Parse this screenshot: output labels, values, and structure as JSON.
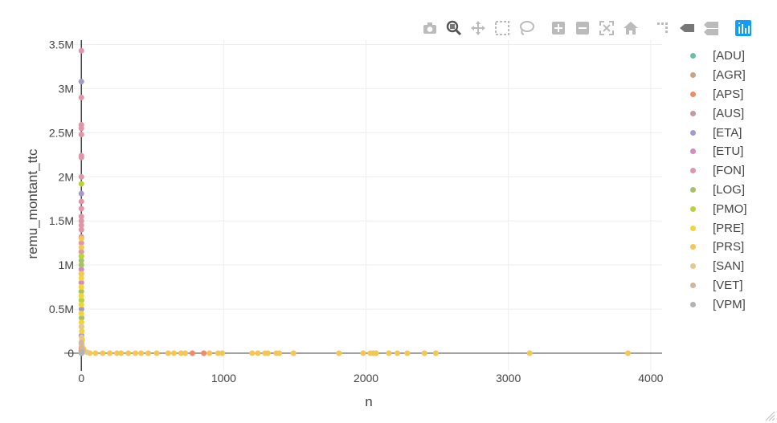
{
  "modebar": {
    "buttons": [
      {
        "name": "camera-icon"
      },
      {
        "name": "zoom-icon"
      },
      {
        "name": "pan-icon"
      },
      {
        "name": "box-select-icon"
      },
      {
        "name": "lasso-select-icon"
      },
      {
        "name": "zoom-in-icon"
      },
      {
        "name": "zoom-out-icon"
      },
      {
        "name": "autoscale-icon"
      },
      {
        "name": "home-icon"
      },
      {
        "name": "spike-lines-icon"
      },
      {
        "name": "hover-closest-icon"
      },
      {
        "name": "hover-compare-icon"
      },
      {
        "name": "plotly-logo-icon"
      }
    ]
  },
  "chart_data": {
    "type": "scatter",
    "xlabel": "n",
    "ylabel": "remu_montant_ttc",
    "xlim": [
      -120,
      4080
    ],
    "ylim": [
      -0.2,
      3.55
    ],
    "y_unit_note": "M",
    "x_ticks": [
      "0",
      "1000",
      "2000",
      "3000",
      "4000"
    ],
    "y_ticks": [
      "0",
      "0.5M",
      "1M",
      "1.5M",
      "2M",
      "2.5M",
      "3M",
      "3.5M"
    ],
    "grid": true,
    "legend_position": "right",
    "series": [
      {
        "name": "[ADU]",
        "color": "#66c2a5",
        "points": [
          [
            0,
            0.02
          ],
          [
            1,
            0.05
          ],
          [
            2,
            0.1
          ]
        ]
      },
      {
        "name": "[AGR]",
        "color": "#c9a287",
        "points": [
          [
            0,
            0.03
          ],
          [
            3,
            0.08
          ],
          [
            5,
            0.15
          ]
        ]
      },
      {
        "name": "[APS]",
        "color": "#f08b66",
        "points": [
          [
            780,
            0.0
          ],
          [
            860,
            0.0
          ],
          [
            0,
            0.06
          ]
        ]
      },
      {
        "name": "[AUS]",
        "color": "#c49aa0",
        "points": [
          [
            0,
            0.2
          ],
          [
            2,
            0.4
          ],
          [
            1,
            0.6
          ]
        ]
      },
      {
        "name": "[ETA]",
        "color": "#a59bc9",
        "points": [
          [
            0,
            3.08
          ],
          [
            0,
            1.81
          ],
          [
            0,
            0.9
          ],
          [
            1,
            0.5
          ],
          [
            2,
            0.2
          ]
        ]
      },
      {
        "name": "[ETU]",
        "color": "#d38bc0",
        "points": [
          [
            0,
            1.1
          ],
          [
            0,
            0.95
          ],
          [
            0,
            0.8
          ],
          [
            1,
            0.3
          ]
        ]
      },
      {
        "name": "[FON]",
        "color": "#e095a8",
        "points": [
          [
            0,
            3.43
          ],
          [
            0,
            2.9
          ],
          [
            0,
            2.59
          ],
          [
            0,
            2.55
          ],
          [
            0,
            2.48
          ],
          [
            0,
            2.24
          ],
          [
            0,
            2.22
          ],
          [
            0,
            2.0
          ],
          [
            0,
            1.72
          ],
          [
            0,
            1.64
          ],
          [
            0,
            1.55
          ],
          [
            0,
            1.5
          ],
          [
            0,
            1.45
          ],
          [
            0,
            1.4
          ],
          [
            0,
            1.32
          ],
          [
            0,
            1.25
          ],
          [
            0,
            1.15
          ]
        ]
      },
      {
        "name": "[LOG]",
        "color": "#a8c167",
        "points": [
          [
            0,
            1.05
          ],
          [
            0,
            1.0
          ],
          [
            0,
            0.7
          ],
          [
            1,
            0.4
          ]
        ]
      },
      {
        "name": "[PMO]",
        "color": "#b6d33b",
        "points": [
          [
            0,
            1.92
          ],
          [
            0,
            1.1
          ],
          [
            0,
            0.6
          ]
        ]
      },
      {
        "name": "[PRE]",
        "color": "#f3d436",
        "points": [
          [
            0,
            0.85
          ],
          [
            0,
            0.75
          ],
          [
            0,
            0.65
          ],
          [
            0,
            0.55
          ],
          [
            0,
            0.45
          ],
          [
            1,
            0.35
          ],
          [
            3,
            0.25
          ],
          [
            6,
            0.15
          ],
          [
            15,
            0.05
          ]
        ]
      },
      {
        "name": "[PRS]",
        "color": "#f4c653",
        "points": [
          [
            0,
            1.3
          ],
          [
            0,
            1.2
          ],
          [
            0,
            0.9
          ],
          [
            60,
            0.0
          ],
          [
            100,
            0.0
          ],
          [
            150,
            0.0
          ],
          [
            200,
            0.0
          ],
          [
            250,
            0.0
          ],
          [
            280,
            0.0
          ],
          [
            330,
            0.0
          ],
          [
            380,
            0.0
          ],
          [
            420,
            0.0
          ],
          [
            470,
            0.0
          ],
          [
            530,
            0.0
          ],
          [
            610,
            0.0
          ],
          [
            650,
            0.0
          ],
          [
            700,
            0.0
          ],
          [
            730,
            0.0
          ],
          [
            900,
            0.0
          ],
          [
            960,
            0.0
          ],
          [
            990,
            0.0
          ],
          [
            1200,
            0.0
          ],
          [
            1240,
            0.0
          ],
          [
            1290,
            0.0
          ],
          [
            1310,
            0.0
          ],
          [
            1370,
            0.0
          ],
          [
            1390,
            0.0
          ],
          [
            1490,
            0.0
          ],
          [
            1810,
            0.0
          ],
          [
            1980,
            0.0
          ],
          [
            2030,
            0.0
          ],
          [
            2050,
            0.0
          ],
          [
            2070,
            0.0
          ],
          [
            2160,
            0.0
          ],
          [
            2220,
            0.0
          ],
          [
            2290,
            0.0
          ],
          [
            2410,
            0.0
          ],
          [
            2490,
            0.0
          ],
          [
            3150,
            0.0
          ],
          [
            3840,
            0.0
          ]
        ]
      },
      {
        "name": "[SAN]",
        "color": "#e4c98e",
        "points": [
          [
            0,
            0.3
          ],
          [
            2,
            0.18
          ],
          [
            4,
            0.1
          ],
          [
            20,
            0.02
          ],
          [
            40,
            0.01
          ]
        ]
      },
      {
        "name": "[VET]",
        "color": "#d2b59a",
        "points": [
          [
            0,
            0.12
          ],
          [
            3,
            0.06
          ],
          [
            10,
            0.03
          ]
        ]
      },
      {
        "name": "[VPM]",
        "color": "#b3b3b3",
        "points": [
          [
            0,
            0.0
          ],
          [
            1,
            0.01
          ],
          [
            2,
            0.0
          ]
        ]
      }
    ]
  }
}
